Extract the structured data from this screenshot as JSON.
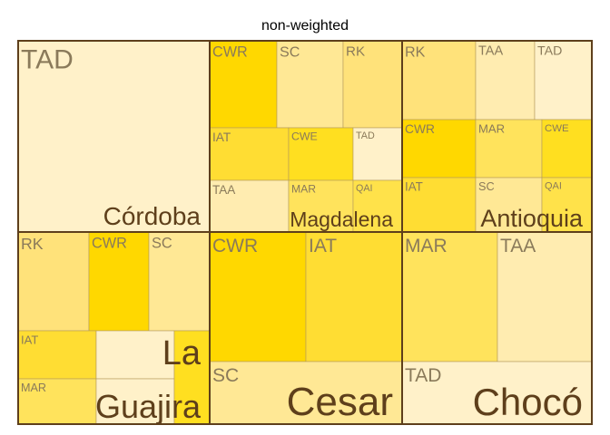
{
  "chart_data": {
    "type": "treemap",
    "title": "non-weighted",
    "palette": {
      "TAD": "#fff1c9",
      "CWR": "#ffd800",
      "SC": "#ffe895",
      "RK": "#ffe27a",
      "IAT": "#ffdd33",
      "CWE": "#ffdf20",
      "TAA": "#ffecb0",
      "MAR": "#ffe35c",
      "QAI": "#ffe24a",
      "border": "#5e3f1b",
      "tile_text": "#8a7a5a",
      "group_text": "#5e3f1b"
    },
    "groups": [
      {
        "name": "Córdoba",
        "tiles": [
          {
            "label": "TAD",
            "value": 211
          }
        ]
      },
      {
        "name": "Magdalena",
        "tiles": [
          {
            "label": "CWR",
            "value": 20
          },
          {
            "label": "SC",
            "value": 19
          },
          {
            "label": "RK",
            "value": 17
          },
          {
            "label": "IAT",
            "value": 12
          },
          {
            "label": "CWE",
            "value": 10
          },
          {
            "label": "TAD",
            "value": 8
          },
          {
            "label": "TAA",
            "value": 7
          },
          {
            "label": "MAR",
            "value": 6
          },
          {
            "label": "QAI",
            "value": 5
          }
        ]
      },
      {
        "name": "Antioquia",
        "tiles": [
          {
            "label": "RK",
            "value": 28
          },
          {
            "label": "TAA",
            "value": 20
          },
          {
            "label": "TAD",
            "value": 20
          },
          {
            "label": "CWR",
            "value": 17
          },
          {
            "label": "MAR",
            "value": 14
          },
          {
            "label": "CWE",
            "value": 11
          },
          {
            "label": "IAT",
            "value": 16
          },
          {
            "label": "SC",
            "value": 10
          },
          {
            "label": "QAI",
            "value": 4
          }
        ]
      },
      {
        "name": "La Guajira",
        "tiles": [
          {
            "label": "RK",
            "value": 42
          },
          {
            "label": "CWR",
            "value": 35
          },
          {
            "label": "SC",
            "value": 36
          },
          {
            "label": "IAT",
            "value": 22
          },
          {
            "label": "",
            "value": 22
          },
          {
            "label": "MAR",
            "value": 13
          },
          {
            "label": "",
            "value": 13
          },
          {
            "label": "",
            "value": 13
          }
        ]
      },
      {
        "name": "Cesar",
        "tiles": [
          {
            "label": "CWR",
            "value": 77
          },
          {
            "label": "IAT",
            "value": 77
          },
          {
            "label": "SC",
            "value": 51
          }
        ]
      },
      {
        "name": "Chocó",
        "tiles": [
          {
            "label": "MAR",
            "value": 77
          },
          {
            "label": "TAA",
            "value": 77
          },
          {
            "label": "TAD",
            "value": 51
          }
        ]
      }
    ]
  }
}
